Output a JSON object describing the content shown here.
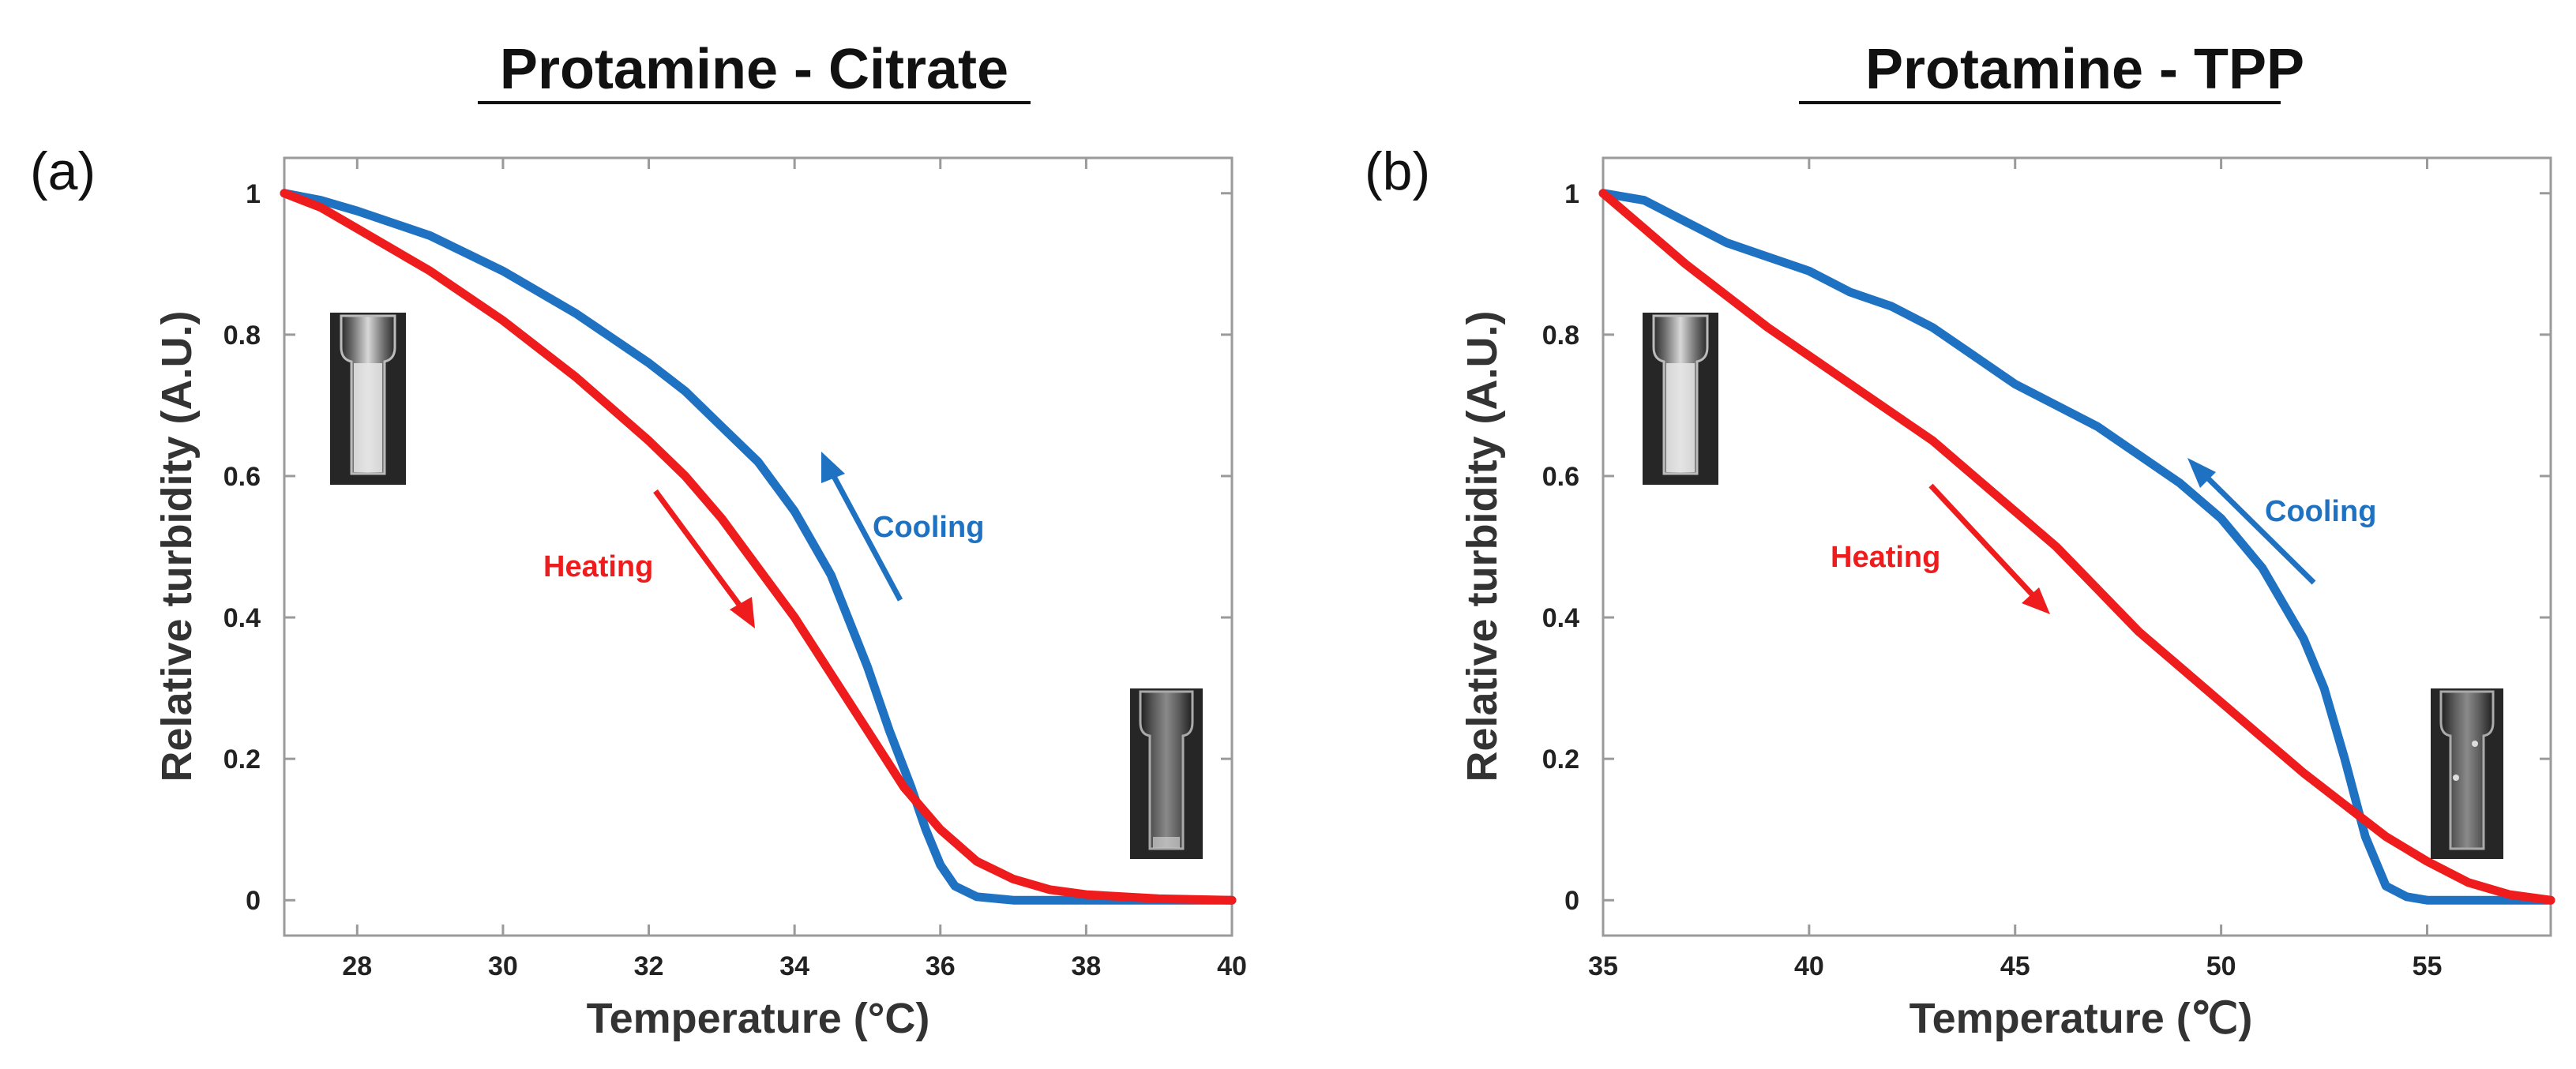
{
  "chart_data": [
    {
      "type": "line",
      "panel": "(a)",
      "title": "Protamine - Citrate",
      "xlabel": "Temperature (°C)",
      "ylabel": "Relative turbidity (A.U.)",
      "xlim": [
        27,
        40
      ],
      "ylim": [
        -0.05,
        1.05
      ],
      "xticks": [
        28,
        30,
        32,
        34,
        36,
        38,
        40
      ],
      "xtick_labels": [
        "28",
        "30",
        "32",
        "34",
        "36",
        "38",
        "40"
      ],
      "yticks": [
        0,
        0.2,
        0.4,
        0.6,
        0.8,
        1
      ],
      "ytick_labels": [
        "0",
        "0.2",
        "0.4",
        "0.6",
        "0.8",
        "1"
      ],
      "grid": false,
      "series": [
        {
          "name": "Cooling",
          "color": "#1f72c2",
          "x": [
            27,
            27.5,
            28,
            29,
            30,
            31,
            32,
            32.5,
            33,
            33.5,
            34,
            34.5,
            35,
            35.3,
            35.6,
            35.8,
            36,
            36.2,
            36.5,
            37,
            38,
            40
          ],
          "y": [
            1.0,
            0.99,
            0.975,
            0.94,
            0.89,
            0.83,
            0.76,
            0.72,
            0.67,
            0.62,
            0.55,
            0.46,
            0.33,
            0.24,
            0.16,
            0.1,
            0.05,
            0.02,
            0.005,
            0.0,
            0.0,
            0.0
          ]
        },
        {
          "name": "Heating",
          "color": "#ee1c1c",
          "x": [
            27,
            27.5,
            28,
            29,
            30,
            31,
            32,
            32.5,
            33,
            33.5,
            34,
            34.5,
            35,
            35.5,
            36,
            36.5,
            37,
            37.5,
            38,
            39,
            40
          ],
          "y": [
            1.0,
            0.98,
            0.95,
            0.89,
            0.82,
            0.74,
            0.65,
            0.6,
            0.54,
            0.47,
            0.4,
            0.32,
            0.24,
            0.16,
            0.1,
            0.055,
            0.03,
            0.015,
            0.008,
            0.002,
            0.0
          ]
        }
      ],
      "annotations": [
        {
          "text": "Cooling",
          "color": "#1f72c2",
          "arrow": "up-left"
        },
        {
          "text": "Heating",
          "color": "#ee1c1c",
          "arrow": "down-right"
        }
      ]
    },
    {
      "type": "line",
      "panel": "(b)",
      "title": "Protamine - TPP",
      "xlabel": "Temperature (℃)",
      "ylabel": "Relative turbidity (A.U.)",
      "xlim": [
        35,
        58
      ],
      "ylim": [
        -0.05,
        1.05
      ],
      "xticks": [
        35,
        40,
        45,
        50,
        55
      ],
      "xtick_labels": [
        "35",
        "40",
        "45",
        "50",
        "55"
      ],
      "yticks": [
        0,
        0.2,
        0.4,
        0.6,
        0.8,
        1
      ],
      "ytick_labels": [
        "0",
        "0.2",
        "0.4",
        "0.6",
        "0.8",
        "1"
      ],
      "grid": false,
      "series": [
        {
          "name": "Cooling",
          "color": "#1f72c2",
          "x": [
            35,
            36,
            37,
            38,
            39,
            40,
            41,
            42,
            43,
            44,
            45,
            46,
            47,
            48,
            49,
            50,
            51,
            52,
            52.5,
            53,
            53.5,
            54,
            54.5,
            55,
            56,
            57,
            58
          ],
          "y": [
            1.0,
            0.99,
            0.96,
            0.93,
            0.91,
            0.89,
            0.86,
            0.84,
            0.81,
            0.77,
            0.73,
            0.7,
            0.67,
            0.63,
            0.59,
            0.54,
            0.47,
            0.37,
            0.3,
            0.2,
            0.09,
            0.02,
            0.005,
            0.0,
            0.0,
            0.0,
            0.0
          ]
        },
        {
          "name": "Heating",
          "color": "#ee1c1c",
          "x": [
            35,
            36,
            37,
            38,
            39,
            40,
            41,
            42,
            43,
            44,
            45,
            46,
            47,
            48,
            49,
            50,
            51,
            52,
            53,
            54,
            55,
            56,
            57,
            58
          ],
          "y": [
            1.0,
            0.95,
            0.9,
            0.855,
            0.81,
            0.77,
            0.73,
            0.69,
            0.65,
            0.6,
            0.55,
            0.5,
            0.44,
            0.38,
            0.33,
            0.28,
            0.23,
            0.18,
            0.135,
            0.09,
            0.055,
            0.025,
            0.008,
            0.0
          ]
        }
      ],
      "annotations": [
        {
          "text": "Cooling",
          "color": "#1f72c2",
          "arrow": "up-left"
        },
        {
          "text": "Heating",
          "color": "#ee1c1c",
          "arrow": "down-right"
        }
      ]
    }
  ]
}
